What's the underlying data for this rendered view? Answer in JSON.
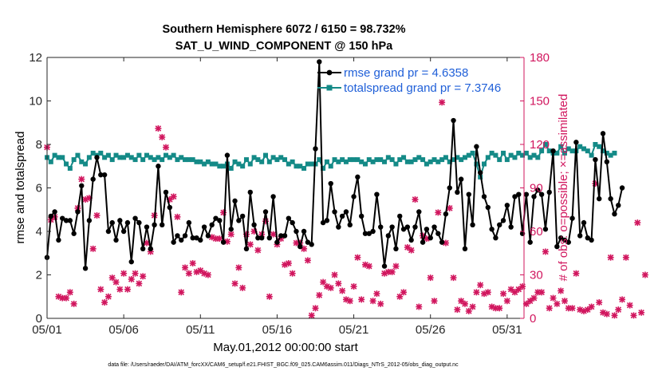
{
  "chart_data": {
    "type": "line",
    "title": "Southern Hemisphere 6072 / 6150 = 98.732%",
    "subtitle": "SAT_U_WIND_COMPONENT @ 150 hPa",
    "xlabel": "May.01,2012 00:00:00 start",
    "ylabel": "rmse and totalspread",
    "y2label": "# of obs: o=possible; ×=assimilated",
    "footnote": "data file: /Users/raeder/DAI/ATM_forcXX/CAM6_setup/f.e21.FHIST_BGC.f09_025.CAM6assim.011/Diags_NTrS_2012-05/obs_diag_output.nc",
    "x_tick_labels": [
      "05/01",
      "05/06",
      "05/11",
      "05/16",
      "05/21",
      "05/26",
      "05/31"
    ],
    "x_tick_days": [
      1,
      6,
      11,
      16,
      21,
      26,
      31
    ],
    "xlim": [
      1,
      32.1
    ],
    "ylim": [
      0,
      12
    ],
    "y_ticks": [
      0,
      2,
      4,
      6,
      8,
      10,
      12
    ],
    "y2lim": [
      0,
      180
    ],
    "y2_ticks": [
      0,
      30,
      60,
      90,
      120,
      150,
      180
    ],
    "grid": false,
    "legend_position": "top-right",
    "colors": {
      "rmse": "#000000",
      "totalspread": "#148a87",
      "obs": "#d1165e",
      "right_axis": "#d1165e",
      "legend_text": "#1f5fd8"
    },
    "series": [
      {
        "name": "rmse grand pr = 4.6358",
        "axis": "left",
        "x_start_day": 1.0,
        "x_step_days": 0.25,
        "values": [
          2.8,
          4.7,
          4.9,
          3.6,
          4.6,
          4.5,
          4.5,
          3.9,
          4.9,
          6.1,
          2.3,
          4.5,
          6.4,
          7.4,
          6.6,
          6.6,
          4.0,
          4.4,
          3.6,
          4.5,
          4.0,
          4.4,
          2.6,
          4.6,
          4.4,
          3.2,
          4.2,
          3.2,
          4.3,
          7.0,
          4.3,
          5.8,
          5.1,
          3.5,
          3.8,
          3.6,
          3.8,
          4.4,
          3.7,
          3.7,
          3.6,
          4.2,
          3.8,
          4.3,
          4.6,
          4.5,
          3.5,
          7.5,
          4.1,
          5.4,
          4.5,
          4.7,
          3.2,
          5.8,
          4.3,
          3.7,
          3.7,
          4.9,
          3.7,
          5.6,
          3.5,
          3.8,
          3.8,
          4.6,
          4.4,
          4.0,
          3.3,
          4.0,
          3.5,
          3.4,
          7.8,
          11.8,
          4.4,
          4.5,
          6.2,
          4.9,
          4.2,
          4.7,
          4.9,
          4.3,
          5.6,
          6.5,
          4.7,
          3.9,
          3.9,
          4.0,
          5.7,
          4.2,
          2.4,
          3.8,
          4.2,
          3.2,
          4.7,
          4.1,
          4.2,
          3.6,
          4.2,
          4.9,
          3.5,
          4.1,
          3.7,
          4.2,
          3.9,
          3.5,
          4.8,
          6.0,
          9.1,
          5.8,
          6.4,
          3.2,
          5.7,
          4.3,
          7.9,
          6.7,
          5.6,
          5.1,
          4.1,
          3.7,
          4.3,
          4.5,
          5.2,
          4.2,
          5.6,
          5.7,
          3.9,
          5.7,
          3.5,
          5.6,
          5.9,
          5.7,
          4.1,
          5.8,
          7.7,
          3.3,
          3.7,
          3.6,
          3.5,
          4.6,
          8.1,
          3.8,
          4.4,
          3.7,
          3.6,
          7.3,
          5.5,
          8.5,
          7.2,
          5.5,
          4.8,
          5.2,
          6.0
        ]
      },
      {
        "name": "totalspread grand pr = 7.3746",
        "axis": "left",
        "x_start_day": 1.0,
        "x_step_days": 0.25,
        "values": [
          7.4,
          7.2,
          7.5,
          7.4,
          7.4,
          7.1,
          6.9,
          7.3,
          7.5,
          7.2,
          7.1,
          7.4,
          7.6,
          7.5,
          7.6,
          7.4,
          7.5,
          7.3,
          7.5,
          7.4,
          7.4,
          7.5,
          7.4,
          7.3,
          7.5,
          7.3,
          7.5,
          7.4,
          7.3,
          7.4,
          7.3,
          7.5,
          7.4,
          7.5,
          7.3,
          7.4,
          7.3,
          7.3,
          7.3,
          7.2,
          7.2,
          7.1,
          7.2,
          7.1,
          7.1,
          7.0,
          7.0,
          7.1,
          6.9,
          7.2,
          7.1,
          7.0,
          7.3,
          7.1,
          7.4,
          7.3,
          7.2,
          7.5,
          7.2,
          7.4,
          7.3,
          7.4,
          7.3,
          7.1,
          7.2,
          7.0,
          7.0,
          6.9,
          7.1,
          7.1,
          7.1,
          7.3,
          6.9,
          7.2,
          7.0,
          7.3,
          7.2,
          7.3,
          7.2,
          7.3,
          7.3,
          7.3,
          7.2,
          7.1,
          7.3,
          7.2,
          7.3,
          7.3,
          7.2,
          7.4,
          7.3,
          7.1,
          7.3,
          7.4,
          7.2,
          7.2,
          7.3,
          7.4,
          7.3,
          7.1,
          7.2,
          7.3,
          7.2,
          7.3,
          7.4,
          7.2,
          7.3,
          7.4,
          7.3,
          7.4,
          7.5,
          7.6,
          7.1,
          6.5,
          7.1,
          7.4,
          7.6,
          7.5,
          7.3,
          7.6,
          7.3,
          7.5,
          7.4,
          7.6,
          7.5,
          7.6,
          7.4,
          7.5,
          7.4,
          7.7,
          8.0,
          7.7,
          7.6,
          7.6,
          7.9,
          7.6,
          7.8,
          7.7,
          7.7,
          7.9,
          7.8,
          7.7,
          7.5,
          8.0,
          7.9,
          7.7,
          7.6,
          7.5,
          7.6
        ]
      },
      {
        "name": "obs assimilated",
        "axis": "right",
        "type": "scatter",
        "x_start_day": 1.0,
        "x_step_days": 0.25,
        "values": [
          118,
          68,
          70,
          15,
          14,
          14,
          18,
          10,
          76,
          96,
          82,
          83,
          48,
          71,
          20,
          11,
          15,
          28,
          25,
          20,
          31,
          20,
          27,
          31,
          24,
          29,
          52,
          46,
          71,
          131,
          125,
          118,
          82,
          84,
          70,
          18,
          35,
          31,
          38,
          32,
          33,
          31,
          30,
          56,
          55,
          55,
          73,
          53,
          58,
          24,
          35,
          21,
          58,
          51,
          60,
          47,
          58,
          67,
          15,
          58,
          51,
          55,
          37,
          38,
          31,
          52,
          52,
          48,
          40,
          2,
          7,
          16,
          25,
          22,
          21,
          30,
          24,
          19,
          13,
          12,
          22,
          42,
          13,
          37,
          36,
          12,
          17,
          10,
          31,
          32,
          32,
          36,
          15,
          18,
          49,
          47,
          82,
          8,
          57,
          55,
          28,
          12,
          73,
          149,
          52,
          76,
          28,
          6,
          12,
          10,
          5,
          8,
          18,
          23,
          17,
          18,
          8,
          7,
          7,
          17,
          12,
          20,
          18,
          20,
          22,
          10,
          12,
          14,
          18,
          18,
          46,
          7,
          14,
          10,
          19,
          12,
          7,
          7,
          31,
          6,
          5,
          6,
          8,
          93,
          11,
          4,
          3,
          42,
          2,
          6,
          13,
          42,
          9,
          2,
          66,
          4,
          30
        ]
      }
    ]
  }
}
